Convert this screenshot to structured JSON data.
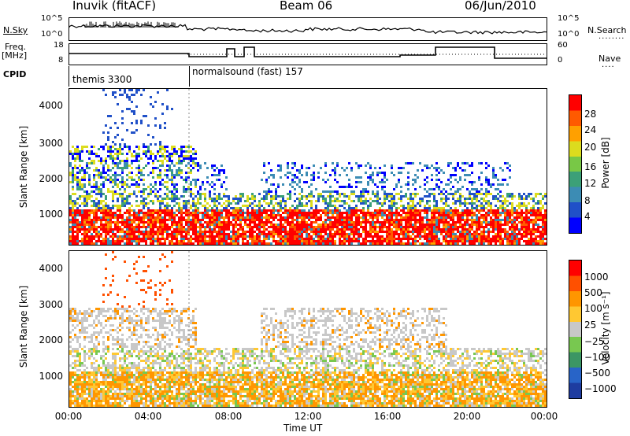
{
  "header": {
    "station": "Inuvik (fitACF)",
    "beam": "Beam 06",
    "date": "06/Jun/2010"
  },
  "left_labels": {
    "nsky": "N.Sky",
    "freq_top": "Freq.",
    "freq_unit": "[MHz]",
    "cpid": "CPID"
  },
  "right_labels": {
    "nsearch": "N.Search",
    "nave": "Nave"
  },
  "cpid_segments": [
    {
      "label": "themis 3300"
    },
    {
      "label": "normalsound (fast) 157"
    }
  ],
  "chart_data": [
    {
      "type": "line",
      "name": "noise-panel",
      "left_axis_ticks": [
        "10^5",
        "10^0"
      ],
      "right_axis_ticks": [
        "10^5",
        "10^0"
      ]
    },
    {
      "type": "line",
      "name": "frequency-panel",
      "left_axis_ticks": [
        "18",
        "8"
      ],
      "right_axis_ticks": [
        "60",
        "0"
      ]
    },
    {
      "type": "heatmap",
      "name": "power-panel",
      "ylabel": "Slant Range [km]",
      "yticks": [
        "4000",
        "3000",
        "2000",
        "1000"
      ],
      "colorbar_label": "Power [dB]",
      "colorbar_ticks": [
        "28",
        "24",
        "20",
        "16",
        "12",
        "8",
        "4"
      ],
      "colorbar_colors": [
        "#0000ff",
        "#2050c8",
        "#3c8cb4",
        "#3ca078",
        "#78c846",
        "#dcdc1e",
        "#ffa000",
        "#ff5a00",
        "#ff0000"
      ]
    },
    {
      "type": "heatmap",
      "name": "velocity-panel",
      "ylabel": "Slant Range [km]",
      "yticks": [
        "4000",
        "3000",
        "2000",
        "1000"
      ],
      "colorbar_label": "Velocity [m s⁻¹]",
      "colorbar_ticks": [
        "1000",
        "500",
        "100",
        "25",
        "−25",
        "−100",
        "−500",
        "−1000"
      ],
      "colorbar_colors": [
        "#1e3ca0",
        "#2864c8",
        "#3c9664",
        "#78c850",
        "#c8c8c8",
        "#ffc832",
        "#ff9600",
        "#ff5000",
        "#ff0000"
      ]
    }
  ],
  "x_axis": {
    "ticks": [
      "00:00",
      "04:00",
      "08:00",
      "12:00",
      "16:00",
      "20:00",
      "00:00"
    ],
    "label": "Time UT"
  }
}
